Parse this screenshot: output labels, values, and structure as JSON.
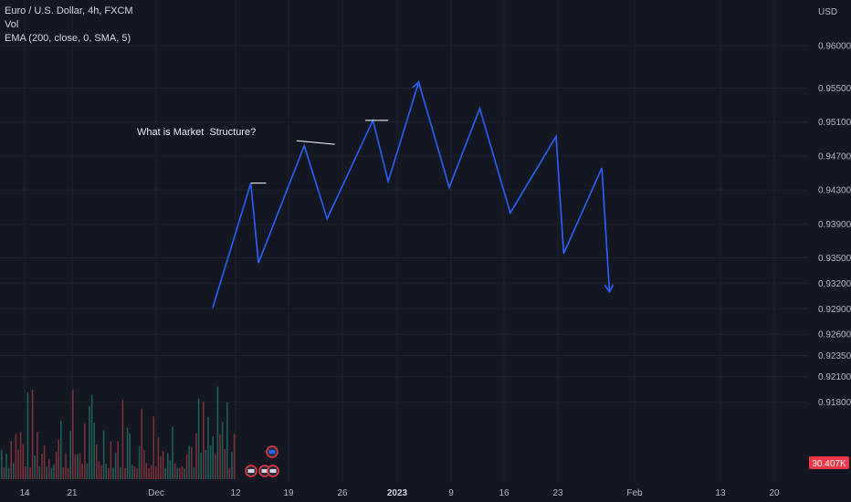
{
  "legend": {
    "symbol_line": "Euro / U.S. Dollar, 4h, FXCM",
    "vol_line": "Vol",
    "ema_line": "EMA (200, close, 0, SMA, 5)"
  },
  "annotation": "What is Market  Structure?",
  "currency_label": "USD",
  "volume_badge": "30.407K",
  "colors": {
    "background": "#131722",
    "grid": "#1e222d",
    "zigzag": "#2962ff",
    "level_line": "#ffffff",
    "vol_up": "#1e5e57",
    "vol_down": "#7b2f38",
    "badge": "#f23645"
  },
  "chart_data": {
    "type": "line",
    "title": "",
    "xlabel": "",
    "ylabel": "",
    "y_axis_ticks": [
      "0.96000",
      "0.95500",
      "0.95100",
      "0.94700",
      "0.94300",
      "0.93900",
      "0.93500",
      "0.93200",
      "0.92900",
      "0.92600",
      "0.92350",
      "0.92100",
      "0.91800"
    ],
    "x_axis_ticks": [
      "14",
      "21",
      "Dec",
      "12",
      "19",
      "26",
      "2023",
      "9",
      "16",
      "23",
      "Feb",
      "13",
      "20"
    ],
    "x_axis_bold": [
      "2023"
    ],
    "ylim": [
      0.9175,
      0.9625
    ],
    "grid": true,
    "zigzag_path": [
      {
        "x": "Dec 9",
        "y": 0.9291
      },
      {
        "x": "Dec 14",
        "y": 0.9438
      },
      {
        "x": "Dec 15",
        "y": 0.9344
      },
      {
        "x": "Dec 21",
        "y": 0.9482
      },
      {
        "x": "Dec 24",
        "y": 0.9396
      },
      {
        "x": "Dec 30",
        "y": 0.9512
      },
      {
        "x": "Jan 1",
        "y": 0.944
      },
      {
        "x": "Jan 5",
        "y": 0.9557
      },
      {
        "x": "Jan 9",
        "y": 0.9433
      },
      {
        "x": "Jan 13",
        "y": 0.9526
      },
      {
        "x": "Jan 17",
        "y": 0.9403
      },
      {
        "x": "Jan 23",
        "y": 0.9493
      },
      {
        "x": "Jan 24",
        "y": 0.9355
      },
      {
        "x": "Jan 29",
        "y": 0.9456
      },
      {
        "x": "Jan 30",
        "y": 0.931
      }
    ],
    "level_lines": [
      {
        "x_start": "Dec 14",
        "x_end": "Dec 16",
        "y": 0.9438
      },
      {
        "x_start": "Dec 20",
        "x_end": "Dec 25",
        "y": 0.9488
      },
      {
        "x_start": "Dec 29",
        "x_end": "Jan 1",
        "y": 0.9512
      }
    ]
  }
}
